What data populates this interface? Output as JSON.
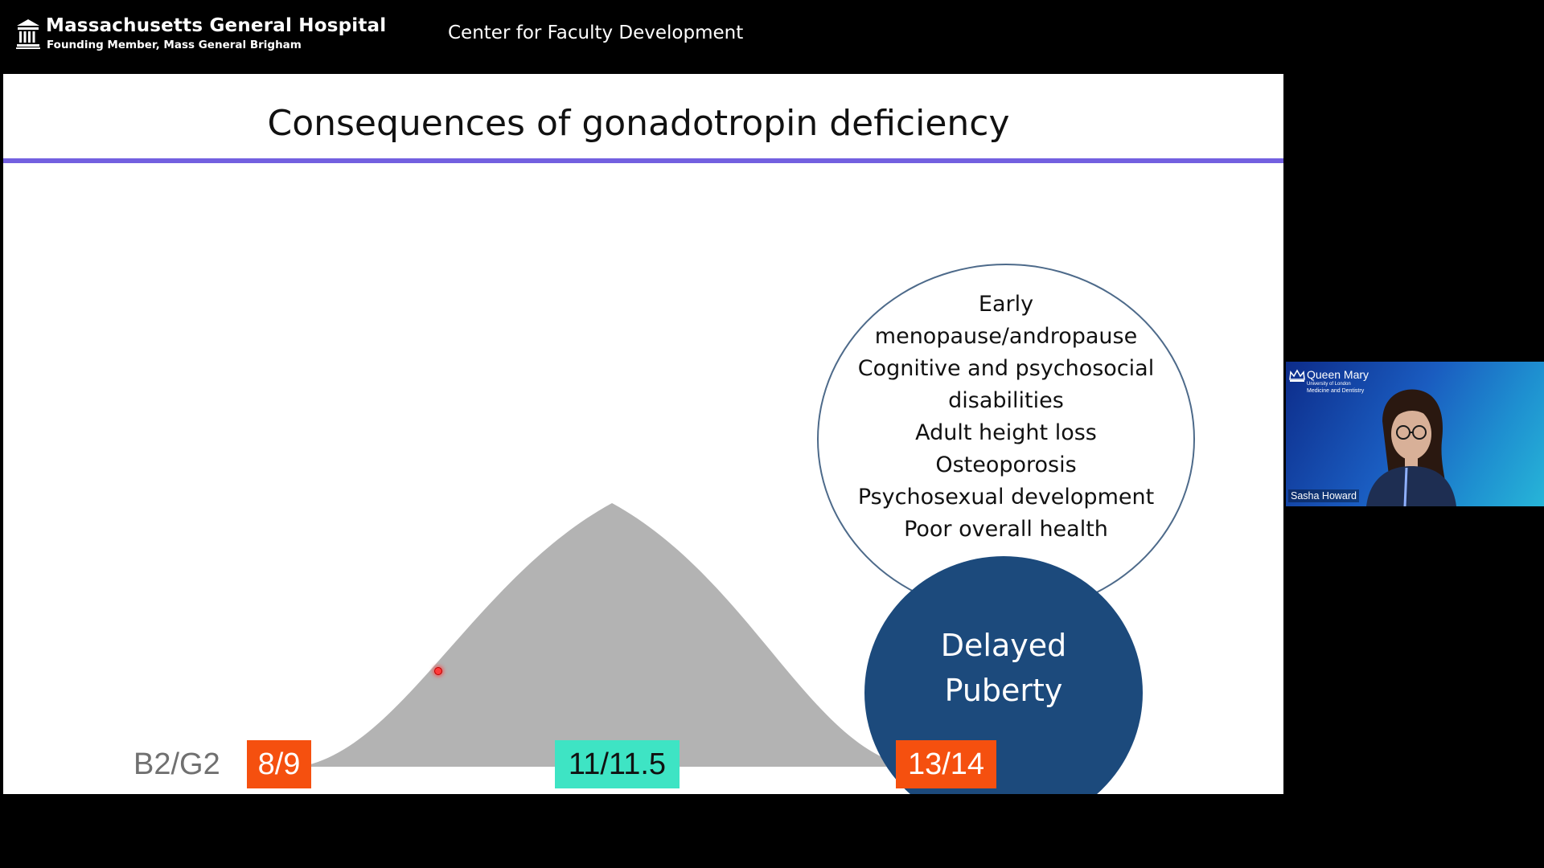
{
  "header": {
    "hospital_name": "Massachusetts General Hospital",
    "hospital_subtitle": "Founding Member, Mass General Brigham",
    "center_title": "Center for Faculty Development"
  },
  "slide": {
    "title": "Consequences of gonadotropin deficiency",
    "consequences": [
      "Early",
      "menopause/andropause",
      "Cognitive and psychosocial",
      "disabilities",
      "Adult height loss",
      "Osteoporosis",
      "Psychosexual development",
      "Poor overall health"
    ],
    "delayed_line1": "Delayed",
    "delayed_line2": "Puberty",
    "stage_label": "B2/G2",
    "age_early": "8/9",
    "age_mean": "11/11.5",
    "age_late": "13/14",
    "colors": {
      "accent_rule": "#7360e0",
      "age_box_orange": "#f5500f",
      "age_box_teal": "#3ee4c4",
      "delayed_circle": "#1c4a7c",
      "curve": "#b3b3b3"
    }
  },
  "video": {
    "org_title": "Queen Mary",
    "org_sub1": "University of London",
    "org_sub2": "Medicine and Dentistry",
    "participant_name": "Sasha Howard"
  }
}
